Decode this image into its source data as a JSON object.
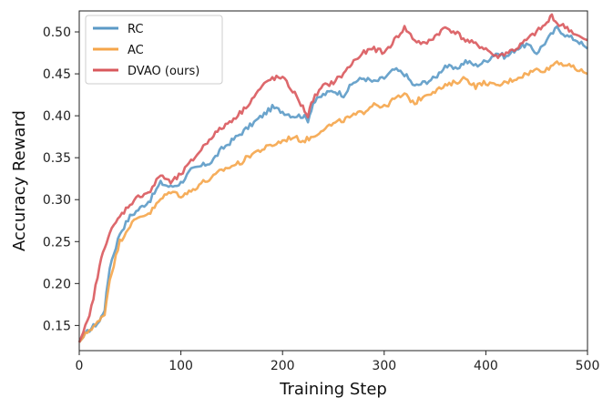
{
  "chart_data": {
    "type": "line",
    "title": "",
    "xlabel": "Training Step",
    "ylabel": "Accuracy Reward",
    "xlim": [
      0,
      500
    ],
    "ylim": [
      0.12,
      0.525
    ],
    "xticks": [
      0,
      100,
      200,
      300,
      400,
      500
    ],
    "xtick_labels": [
      "0",
      "100",
      "200",
      "300",
      "400",
      "500"
    ],
    "yticks": [
      0.15,
      0.2,
      0.25,
      0.3,
      0.35,
      0.4,
      0.45,
      0.5
    ],
    "ytick_labels": [
      "0.15",
      "0.20",
      "0.25",
      "0.30",
      "0.35",
      "0.40",
      "0.45",
      "0.50"
    ],
    "grid": false,
    "legend_position": "top-left",
    "series": [
      {
        "name": "RC",
        "color": "#5b9ac6",
        "x": [
          0,
          10,
          20,
          25,
          30,
          40,
          50,
          60,
          70,
          80,
          90,
          100,
          110,
          120,
          130,
          140,
          150,
          160,
          170,
          180,
          190,
          200,
          210,
          220,
          225,
          230,
          240,
          250,
          260,
          270,
          280,
          290,
          300,
          310,
          320,
          330,
          340,
          350,
          360,
          370,
          380,
          390,
          400,
          410,
          420,
          430,
          440,
          450,
          460,
          470,
          480,
          490,
          500
        ],
        "y": [
          0.13,
          0.145,
          0.155,
          0.17,
          0.22,
          0.26,
          0.28,
          0.29,
          0.3,
          0.32,
          0.315,
          0.32,
          0.335,
          0.34,
          0.345,
          0.36,
          0.37,
          0.38,
          0.39,
          0.4,
          0.41,
          0.405,
          0.4,
          0.4,
          0.395,
          0.415,
          0.425,
          0.43,
          0.425,
          0.44,
          0.445,
          0.44,
          0.445,
          0.455,
          0.45,
          0.435,
          0.44,
          0.445,
          0.46,
          0.455,
          0.465,
          0.46,
          0.465,
          0.475,
          0.47,
          0.48,
          0.485,
          0.475,
          0.49,
          0.505,
          0.495,
          0.49,
          0.48
        ]
      },
      {
        "name": "AC",
        "color": "#f5a54a",
        "x": [
          0,
          10,
          20,
          25,
          30,
          40,
          50,
          60,
          70,
          80,
          90,
          100,
          110,
          120,
          130,
          140,
          150,
          160,
          170,
          180,
          190,
          200,
          210,
          220,
          230,
          240,
          250,
          260,
          270,
          280,
          290,
          300,
          310,
          320,
          330,
          340,
          350,
          360,
          370,
          380,
          390,
          400,
          410,
          420,
          430,
          440,
          450,
          460,
          470,
          480,
          490,
          500
        ],
        "y": [
          0.13,
          0.145,
          0.155,
          0.165,
          0.205,
          0.25,
          0.27,
          0.28,
          0.285,
          0.3,
          0.31,
          0.305,
          0.31,
          0.32,
          0.325,
          0.335,
          0.34,
          0.345,
          0.355,
          0.36,
          0.365,
          0.37,
          0.375,
          0.37,
          0.375,
          0.385,
          0.39,
          0.395,
          0.4,
          0.405,
          0.415,
          0.41,
          0.42,
          0.425,
          0.415,
          0.425,
          0.43,
          0.435,
          0.44,
          0.445,
          0.435,
          0.44,
          0.435,
          0.44,
          0.445,
          0.45,
          0.455,
          0.455,
          0.465,
          0.46,
          0.455,
          0.45
        ]
      },
      {
        "name": "DVAO (ours)",
        "color": "#d9585c",
        "x": [
          0,
          10,
          20,
          25,
          30,
          40,
          50,
          60,
          70,
          80,
          90,
          100,
          110,
          120,
          130,
          140,
          150,
          160,
          170,
          180,
          190,
          200,
          210,
          220,
          225,
          230,
          240,
          250,
          260,
          270,
          280,
          290,
          300,
          310,
          320,
          330,
          340,
          350,
          360,
          370,
          380,
          390,
          400,
          410,
          420,
          430,
          440,
          450,
          460,
          465,
          470,
          480,
          490,
          500
        ],
        "y": [
          0.13,
          0.16,
          0.22,
          0.245,
          0.26,
          0.28,
          0.295,
          0.305,
          0.31,
          0.33,
          0.32,
          0.33,
          0.345,
          0.36,
          0.375,
          0.385,
          0.395,
          0.405,
          0.42,
          0.435,
          0.445,
          0.445,
          0.43,
          0.41,
          0.4,
          0.42,
          0.435,
          0.44,
          0.45,
          0.465,
          0.475,
          0.48,
          0.475,
          0.49,
          0.505,
          0.49,
          0.485,
          0.495,
          0.505,
          0.5,
          0.49,
          0.485,
          0.48,
          0.47,
          0.475,
          0.48,
          0.49,
          0.5,
          0.51,
          0.52,
          0.51,
          0.505,
          0.495,
          0.49
        ]
      }
    ]
  }
}
